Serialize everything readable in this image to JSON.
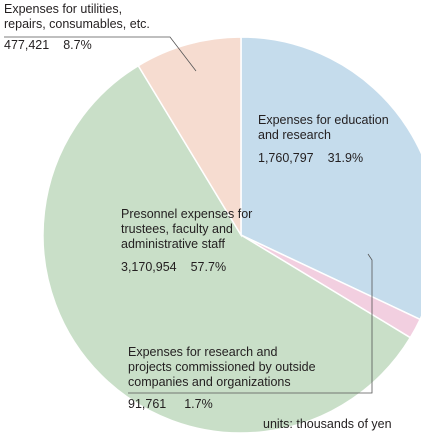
{
  "chart_data": {
    "type": "pie",
    "title": "",
    "units_note": "units: thousands of yen",
    "slices": [
      {
        "category": "Expenses for education and research",
        "category_lines": [
          "Expenses for education",
          "and research"
        ],
        "value": 1760797,
        "value_label": "1,760,797",
        "percent": 31.9,
        "percent_label": "31.9%",
        "color": "#c5dcec"
      },
      {
        "category": "Expenses for research and projects commissioned by outside companies and organizations",
        "category_lines": [
          "Expenses for research and",
          "projects commissioned by outside",
          "companies and organizations"
        ],
        "value": 91761,
        "value_label": "91,761",
        "percent": 1.7,
        "percent_label": "1.7%",
        "color": "#f2cfe0"
      },
      {
        "category": "Presonnel expenses for trustees, faculty and administrative staff",
        "category_lines": [
          "Presonnel expenses for",
          "trustees, faculty and",
          "administrative staff"
        ],
        "value": 3170954,
        "value_label": "3,170,954",
        "percent": 57.7,
        "percent_label": "57.7%",
        "color": "#c9dfc8"
      },
      {
        "category": "Expenses for utilities, repairs, consumables, etc.",
        "category_lines": [
          "Expenses for utilities,",
          "repairs, consumables, etc."
        ],
        "value": 477421,
        "value_label": "477,421",
        "percent": 8.7,
        "percent_label": "8.7%",
        "color": "#f6dcd0"
      }
    ]
  }
}
